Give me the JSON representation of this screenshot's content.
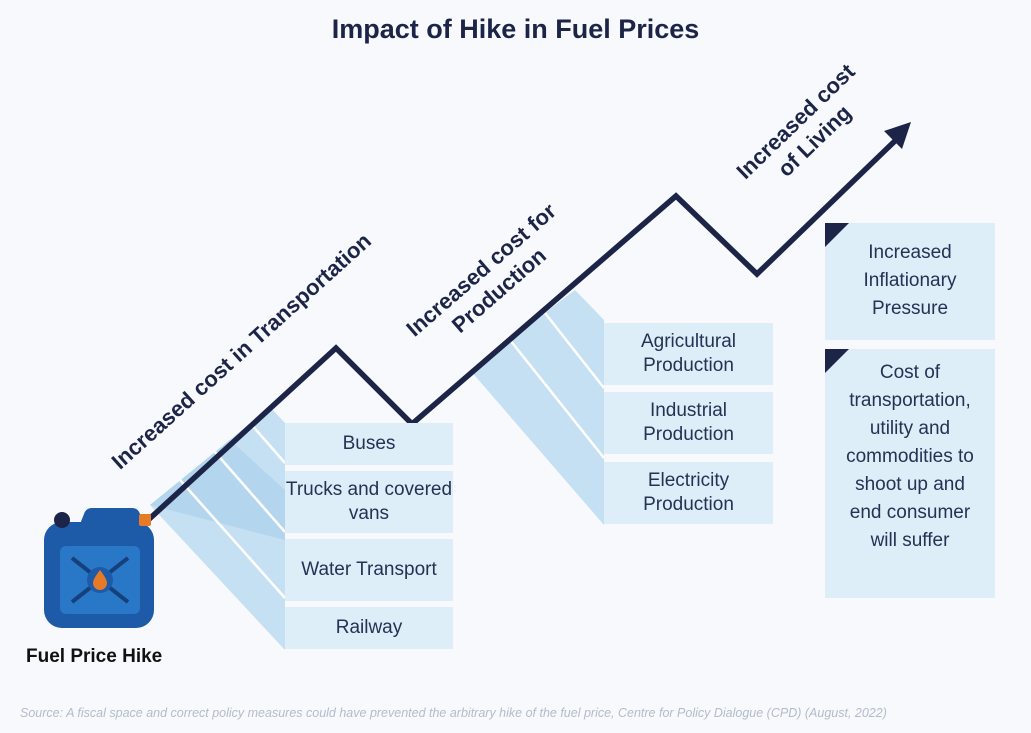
{
  "title": "Impact of Hike in Fuel Prices",
  "stages": [
    {
      "label": "Increased cost in Transportation"
    },
    {
      "label": "Increased cost for Production"
    },
    {
      "label": "Increased cost of Living"
    }
  ],
  "transport_items": [
    "Buses",
    "Trucks and covered vans",
    "Water Transport",
    "Railway"
  ],
  "production_items": [
    "Agricultural Production",
    "Industrial Production",
    "Electricity Production"
  ],
  "living_items": [
    "Increased Inflationary Pressure",
    "Cost of transportation, utility and commodities to shoot up and end consumer will suffer"
  ],
  "fuel_can": {
    "label": "Fuel Price Hike",
    "icon": "fuel-can-icon"
  },
  "colors": {
    "line": "#1c2447",
    "box": "#ddeef9",
    "stripe": "#c4e0f2",
    "can": "#1d5aa8",
    "drop": "#e57a27"
  },
  "source": "Source: A fiscal space and correct policy measures could have prevented the arbitrary hike of the fuel price, Centre for Policy Dialogue (CPD) (August, 2022)"
}
